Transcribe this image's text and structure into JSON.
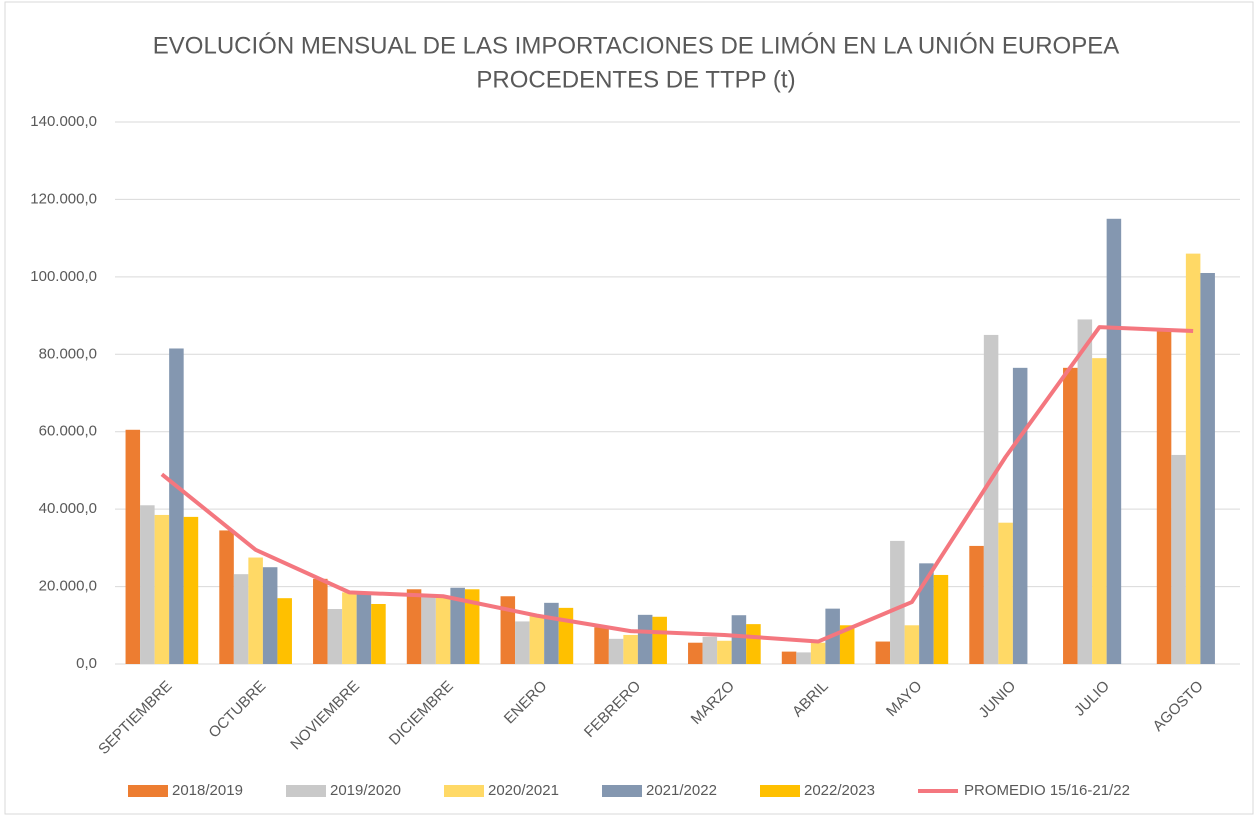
{
  "chart_data": {
    "type": "bar",
    "title": [
      "EVOLUCIÓN MENSUAL DE LAS IMPORTACIONES DE LIMÓN EN LA UNIÓN EUROPEA",
      "PROCEDENTES DE TTPP (t)"
    ],
    "categories": [
      "SEPTIEMBRE",
      "OCTUBRE",
      "NOVIEMBRE",
      "DICIEMBRE",
      "ENERO",
      "FEBRERO",
      "MARZO",
      "ABRIL",
      "MAYO",
      "JUNIO",
      "JULIO",
      "AGOSTO"
    ],
    "series": [
      {
        "name": "2018/2019",
        "color": "#ed7d31",
        "values": [
          60500,
          34500,
          22000,
          19300,
          17500,
          9500,
          5500,
          3200,
          5800,
          30500,
          76500,
          86000
        ]
      },
      {
        "name": "2019/2020",
        "color": "#c9c9c9",
        "values": [
          41000,
          23200,
          14200,
          17500,
          11000,
          6500,
          7000,
          3000,
          31800,
          85000,
          89000,
          54000
        ]
      },
      {
        "name": "2020/2021",
        "color": "#ffd966",
        "values": [
          38500,
          27500,
          18500,
          17500,
          12500,
          7500,
          6000,
          5500,
          10000,
          36500,
          79000,
          106000
        ]
      },
      {
        "name": "2021/2022",
        "color": "#8497b0",
        "values": [
          81500,
          25000,
          18000,
          19700,
          15800,
          12700,
          12600,
          14300,
          26000,
          76500,
          115000,
          101000
        ]
      },
      {
        "name": "2022/2023",
        "color": "#ffc000",
        "values": [
          38000,
          17000,
          15500,
          19300,
          14500,
          12200,
          10300,
          10000,
          23000,
          null,
          null,
          null
        ]
      },
      {
        "name": "PROMEDIO 15/16-21/22",
        "color": "#f4777f",
        "type": "line",
        "values": [
          49000,
          29500,
          18500,
          17500,
          12500,
          8500,
          7500,
          5800,
          16000,
          53500,
          87000,
          86000
        ]
      }
    ],
    "ylim": [
      0,
      140000
    ],
    "yticks": [
      {
        "value": 0,
        "label": "0,0"
      },
      {
        "value": 20000,
        "label": "20.000,0"
      },
      {
        "value": 40000,
        "label": "40.000,0"
      },
      {
        "value": 60000,
        "label": "60.000,0"
      },
      {
        "value": 80000,
        "label": "80.000,0"
      },
      {
        "value": 100000,
        "label": "100.000,0"
      },
      {
        "value": 120000,
        "label": "120.000,0"
      },
      {
        "value": 140000,
        "label": "140.000,0"
      }
    ],
    "grid": true,
    "legend": "bottom"
  }
}
